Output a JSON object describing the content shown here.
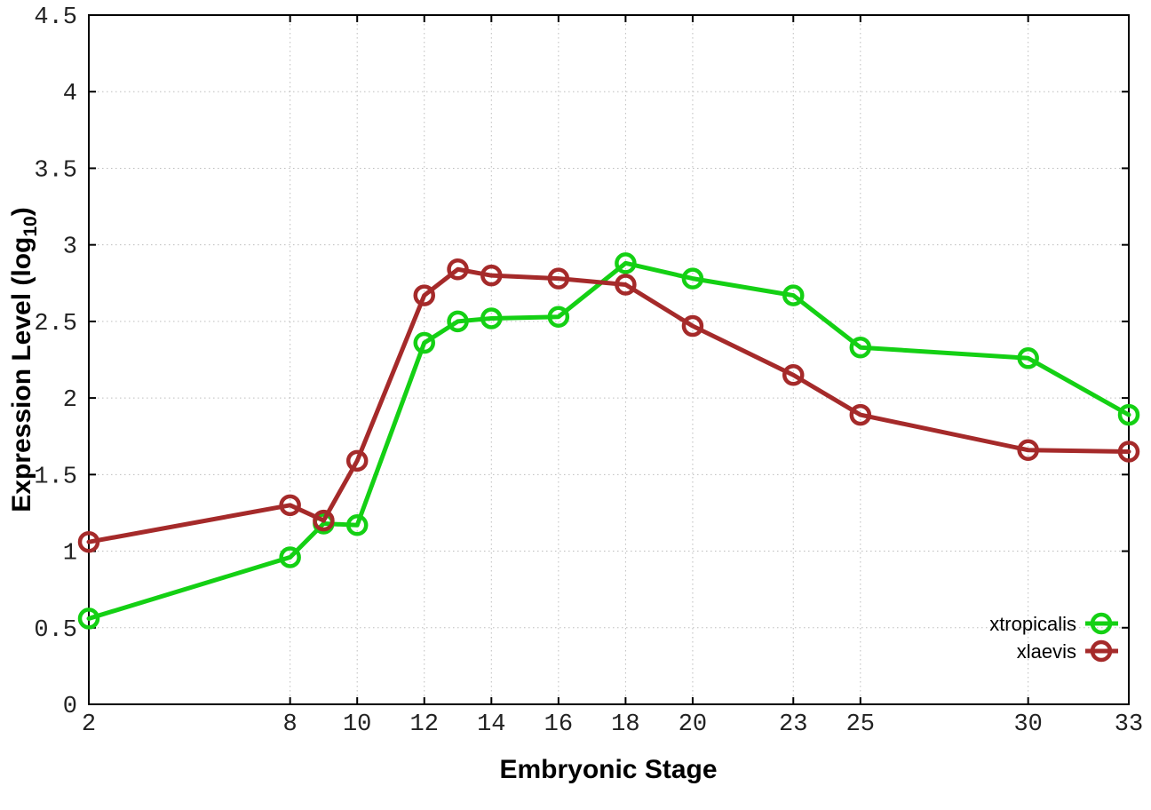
{
  "figure": {
    "background_color": "#ffffff",
    "border_color": "#000000",
    "grid_color": "#bdbdbd",
    "tick_label_color": "#222222"
  },
  "chart_data": {
    "type": "line",
    "title": "",
    "xlabel": "Embryonic Stage",
    "ylabel": "Expression Level (log10)",
    "ylabel_parts": {
      "prefix": "Expression Level (log",
      "subscript": "10",
      "suffix": ")"
    },
    "xlim": [
      2,
      33
    ],
    "ylim": [
      0,
      4.5
    ],
    "x_ticks": [
      2,
      8,
      10,
      12,
      14,
      16,
      18,
      20,
      23,
      25,
      30,
      33
    ],
    "y_ticks": [
      0,
      0.5,
      1,
      1.5,
      2,
      2.5,
      3,
      3.5,
      4,
      4.5
    ],
    "grid": true,
    "legend_position": "bottom-right",
    "marker": "open-circle",
    "x": [
      2,
      8,
      9,
      10,
      12,
      13,
      14,
      16,
      18,
      20,
      23,
      25,
      30,
      33
    ],
    "series": [
      {
        "name": "xtropicalis",
        "color": "#14d014",
        "values": [
          0.56,
          0.96,
          1.18,
          1.17,
          2.36,
          2.5,
          2.52,
          2.53,
          2.88,
          2.78,
          2.67,
          2.33,
          2.26,
          1.89
        ]
      },
      {
        "name": "xlaevis",
        "color": "#a52a2a",
        "values": [
          1.06,
          1.3,
          1.2,
          1.59,
          2.67,
          2.84,
          2.8,
          2.78,
          2.74,
          2.47,
          2.15,
          1.89,
          1.66,
          1.65
        ]
      }
    ]
  }
}
